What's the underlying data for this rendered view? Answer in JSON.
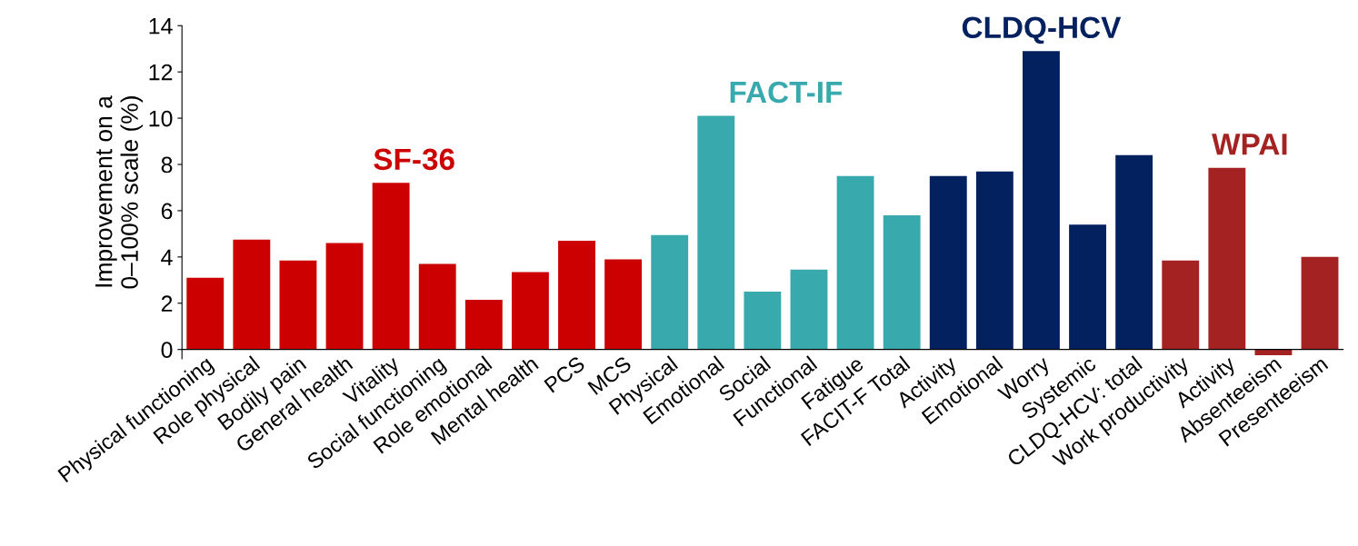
{
  "chart_data": {
    "type": "bar",
    "ylabel": "Improvement on a\n0–100% scale (%)",
    "categories": [
      "Physical functioning",
      "Role physical",
      "Bodily pain",
      "General health",
      "Vitality",
      "Social functioning",
      "Role emotional",
      "Mental health",
      "PCS",
      "MCS",
      "Physical",
      "Emotional",
      "Social",
      "Functional",
      "Fatigue",
      "FACIT-F Total",
      "Activity",
      "Emotional",
      "Worry",
      "Systemic",
      "CLDQ-HCV: total",
      "Work productivity",
      "Activity",
      "Absenteeism",
      "Presenteeism"
    ],
    "series": [
      {
        "name": "SF-36",
        "color": "#cc0000",
        "values": [
          3.1,
          4.75,
          3.85,
          4.6,
          7.2,
          3.7,
          2.15,
          3.35,
          4.7,
          3.9,
          null,
          null,
          null,
          null,
          null,
          null,
          null,
          null,
          null,
          null,
          null,
          null,
          null,
          null,
          null
        ]
      },
      {
        "name": "FACT-IF",
        "color": "#38a9ad",
        "values": [
          null,
          null,
          null,
          null,
          null,
          null,
          null,
          null,
          null,
          null,
          4.95,
          10.1,
          2.5,
          3.45,
          7.5,
          5.8,
          null,
          null,
          null,
          null,
          null,
          null,
          null,
          null,
          null
        ]
      },
      {
        "name": "CLDQ-HCV",
        "color": "#03215e",
        "values": [
          null,
          null,
          null,
          null,
          null,
          null,
          null,
          null,
          null,
          null,
          null,
          null,
          null,
          null,
          null,
          null,
          7.5,
          7.7,
          12.9,
          5.4,
          8.4,
          null,
          null,
          null,
          null
        ]
      },
      {
        "name": "WPAI",
        "color": "#a52222",
        "values": [
          null,
          null,
          null,
          null,
          null,
          null,
          null,
          null,
          null,
          null,
          null,
          null,
          null,
          null,
          null,
          null,
          null,
          null,
          null,
          null,
          null,
          3.85,
          7.85,
          -0.25,
          4.0
        ]
      }
    ],
    "ylim": [
      -0.4,
      14
    ],
    "yticks": [
      0,
      2,
      4,
      6,
      8,
      10,
      12,
      14
    ],
    "grid": false,
    "legend": false
  }
}
